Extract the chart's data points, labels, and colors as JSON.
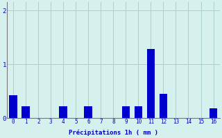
{
  "hours": [
    0,
    1,
    2,
    3,
    4,
    5,
    6,
    7,
    8,
    9,
    10,
    11,
    12,
    13,
    14,
    15,
    16
  ],
  "values": [
    0.42,
    0.22,
    0.0,
    0.0,
    0.22,
    0.0,
    0.22,
    0.0,
    0.0,
    0.22,
    0.22,
    1.28,
    0.45,
    0.0,
    0.0,
    0.0,
    0.18
  ],
  "bar_color": "#0000cc",
  "background_color": "#d6f0ee",
  "grid_color": "#aacece",
  "xlabel": "Précipitations 1h ( mm )",
  "xlabel_color": "#0000bb",
  "ylabel_color": "#0000bb",
  "tick_color": "#0000bb",
  "ylim": [
    0,
    2.15
  ],
  "yticks": [
    0,
    1,
    2
  ],
  "xlim": [
    -0.5,
    16.5
  ],
  "bar_width": 0.65,
  "spine_color": "#777777"
}
